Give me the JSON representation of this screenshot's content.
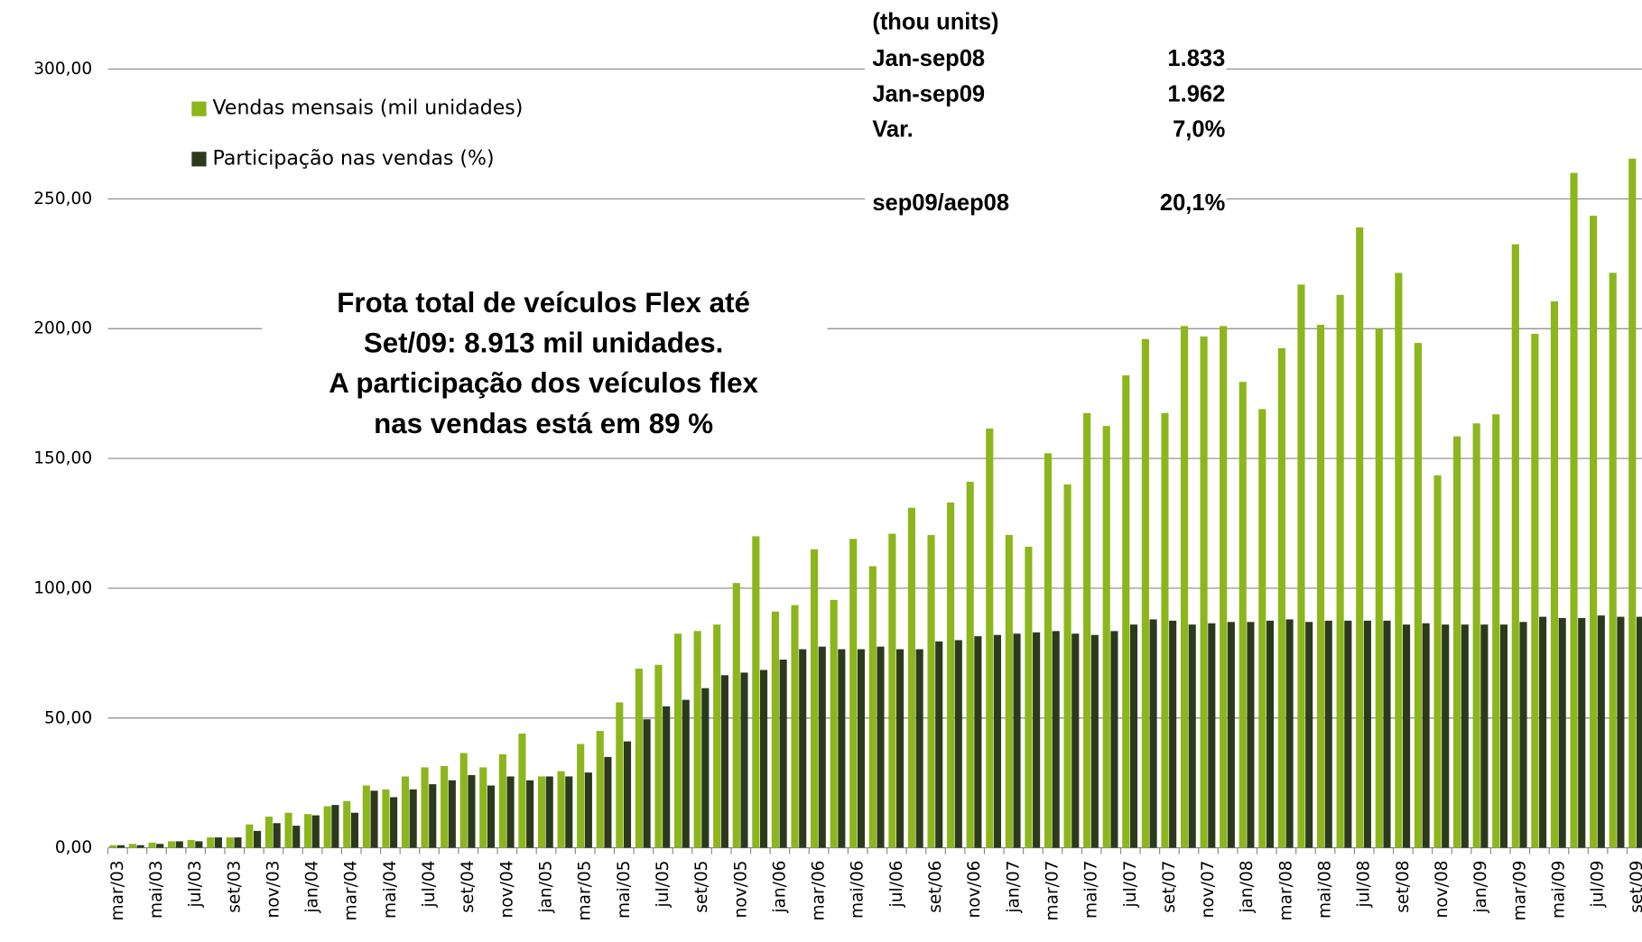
{
  "chart_data": {
    "type": "bar",
    "categories": [
      "mar/03",
      null,
      "mai/03",
      null,
      "jul/03",
      null,
      "set/03",
      null,
      "nov/03",
      null,
      "jan/04",
      null,
      "mar/04",
      null,
      "mai/04",
      null,
      "jul/04",
      null,
      "set/04",
      null,
      "nov/04",
      null,
      "jan/05",
      null,
      "mar/05",
      null,
      "mai/05",
      null,
      "jul/05",
      null,
      "set/05",
      null,
      "nov/05",
      null,
      "jan/06",
      null,
      "mar/06",
      null,
      "mai/06",
      null,
      "jul/06",
      null,
      "set/06",
      null,
      "nov/06",
      null,
      "jan/07",
      null,
      "mar/07",
      null,
      "mai/07",
      null,
      "jul/07",
      null,
      "set/07",
      null,
      "nov/07",
      null,
      "jan/08",
      null,
      "mar/08",
      null,
      "mai/08",
      null,
      "jul/08",
      null,
      "set/08",
      null,
      "nov/08",
      null,
      "jan/09",
      null,
      "mar/09",
      null,
      "mai/09",
      null,
      "jul/09",
      null,
      "set/09"
    ],
    "series": [
      {
        "name": "Vendas mensais (mil unidades)",
        "color": "#8db51c",
        "values": [
          1,
          1.5,
          2,
          2.5,
          3,
          4,
          4,
          9,
          12,
          13.5,
          13,
          16,
          18,
          24,
          22.5,
          27.5,
          31,
          31.5,
          36.5,
          31,
          36,
          44,
          27.5,
          29.5,
          40,
          45,
          56,
          69,
          70.5,
          82.5,
          83.5,
          86,
          102,
          120,
          91,
          93.5,
          115,
          95.5,
          119,
          108.5,
          121,
          131,
          120.5,
          133,
          141,
          161.5,
          120.5,
          116,
          152,
          140,
          167.5,
          162.5,
          182,
          196,
          167.5,
          201,
          197,
          201,
          179.5,
          169,
          192.5,
          217,
          201.5,
          213,
          239,
          200,
          221.5,
          194.5,
          143.5,
          158.5,
          163.5,
          167,
          232.5,
          198,
          210.5,
          260,
          243.5,
          221.5,
          265.5
        ]
      },
      {
        "name": "Participação nas vendas (%)",
        "color": "#2b3a1c",
        "values": [
          1,
          1,
          1.5,
          2.5,
          2.5,
          4,
          4,
          6.5,
          9.5,
          8.5,
          12.5,
          16.5,
          13.5,
          22,
          19.5,
          22.5,
          24.5,
          26,
          28,
          24,
          27.5,
          26,
          27.5,
          27.5,
          29,
          35,
          41,
          49.5,
          54.5,
          57,
          61.5,
          66.5,
          67.5,
          68.5,
          72.5,
          76.5,
          77.5,
          76.5,
          76.5,
          77.5,
          76.5,
          76.5,
          79.5,
          80,
          81.5,
          82,
          82.5,
          83,
          83.5,
          82.5,
          82,
          83.5,
          86,
          88,
          87.5,
          86,
          86.5,
          87,
          87,
          87.5,
          88,
          87,
          87.5,
          87.5,
          87.5,
          87.5,
          86,
          86.5,
          86,
          86,
          86,
          86,
          87,
          89,
          88.5,
          88.5,
          89.5,
          89,
          89
        ]
      }
    ],
    "ylim": [
      0,
      300
    ],
    "yticks": [
      {
        "value": 0,
        "label": "0,00"
      },
      {
        "value": 50,
        "label": "50,00"
      },
      {
        "value": 100,
        "label": "100,00"
      },
      {
        "value": 150,
        "label": "150,00"
      },
      {
        "value": 200,
        "label": "200,00"
      },
      {
        "value": 250,
        "label": "250,00"
      },
      {
        "value": 300,
        "label": "300,00"
      }
    ],
    "grid": true,
    "legend": "upper left",
    "annotation": [
      "Frota total de veículos Flex até",
      "Set/09: 8.913 mil unidades.",
      "A participação dos veículos flex",
      "nas vendas está em 89 %"
    ],
    "table": {
      "title": "(thou units)",
      "rows": [
        [
          "Jan-sep08",
          "1.833"
        ],
        [
          "Jan-sep09",
          "1.962"
        ],
        [
          "Var.",
          "7,0%"
        ],
        [
          "sep09/aep08",
          "20,1%"
        ]
      ]
    }
  }
}
